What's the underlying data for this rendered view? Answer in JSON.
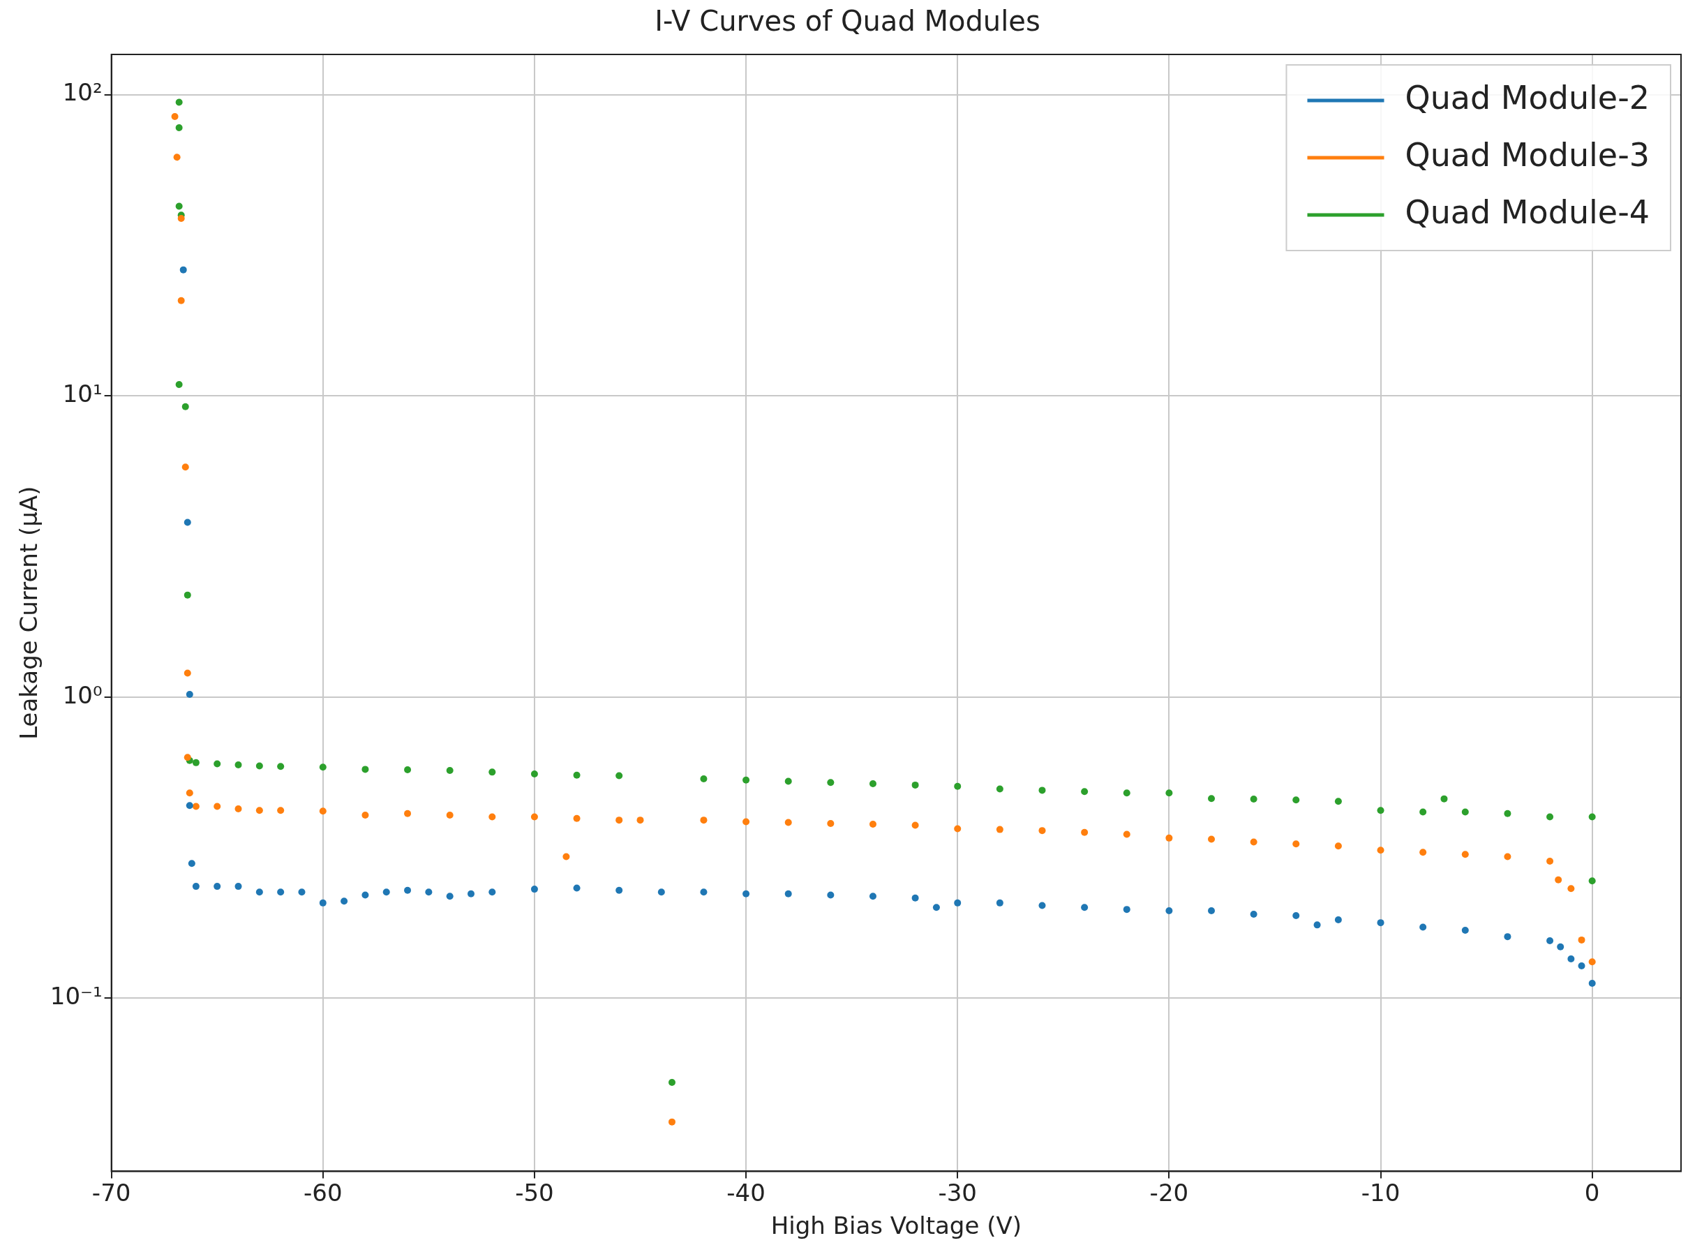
{
  "chart_data": {
    "type": "scatter",
    "title": "I-V Curves of Quad Modules",
    "xlabel": "High Bias Voltage (V)",
    "ylabel": "Leakage Current (μA)",
    "xlim": [
      -70,
      4.2
    ],
    "xticks": [
      -70,
      -60,
      -50,
      -40,
      -30,
      -20,
      -10,
      0
    ],
    "ylim": [
      0.0266,
      136
    ],
    "yticks": [
      {
        "value": 0.1,
        "label": "10⁻¹"
      },
      {
        "value": 1,
        "label": "10⁰"
      },
      {
        "value": 10,
        "label": "10¹"
      },
      {
        "value": 100,
        "label": "10²"
      }
    ],
    "log": "y",
    "grid": true,
    "legend": "top right",
    "marker": "circle",
    "series": [
      {
        "name": "Quad Module-2",
        "color": "#1f77b4",
        "x": [
          -66.6,
          -66.4,
          -66.3,
          -66.3,
          -66.2,
          -66,
          -65,
          -64,
          -63,
          -62,
          -61,
          -60,
          -59,
          -58,
          -57,
          -56,
          -55,
          -54,
          -53,
          -52,
          -50,
          -48,
          -46,
          -44,
          -42,
          -40,
          -38,
          -36,
          -34,
          -32,
          -31,
          -30,
          -28,
          -26,
          -24,
          -22,
          -20,
          -18,
          -16,
          -14,
          -13,
          -12,
          -10,
          -8,
          -6,
          -4,
          -2,
          -1.5,
          -1,
          -0.5,
          0
        ],
        "values": [
          26.2,
          3.8,
          1.02,
          0.436,
          0.28,
          0.235,
          0.235,
          0.235,
          0.225,
          0.225,
          0.225,
          0.207,
          0.21,
          0.22,
          0.225,
          0.228,
          0.225,
          0.218,
          0.222,
          0.225,
          0.23,
          0.232,
          0.228,
          0.225,
          0.225,
          0.222,
          0.222,
          0.22,
          0.218,
          0.215,
          0.2,
          0.207,
          0.207,
          0.203,
          0.2,
          0.197,
          0.195,
          0.195,
          0.19,
          0.188,
          0.175,
          0.182,
          0.178,
          0.172,
          0.168,
          0.16,
          0.155,
          0.148,
          0.135,
          0.128,
          0.112
        ]
      },
      {
        "name": "Quad Module-3",
        "color": "#ff7f0e",
        "x": [
          -67,
          -66.9,
          -66.7,
          -66.7,
          -66.5,
          -66.4,
          -66.4,
          -66.3,
          -66,
          -65,
          -64,
          -63,
          -62,
          -60,
          -58,
          -56,
          -54,
          -52,
          -50,
          -48.5,
          -48,
          -46,
          -45,
          -43.5,
          -42,
          -40,
          -38,
          -36,
          -34,
          -32,
          -30,
          -28,
          -26,
          -24,
          -22,
          -20,
          -18,
          -16,
          -14,
          -12,
          -10,
          -8,
          -6,
          -4,
          -2,
          -1.6,
          -1,
          -0.5,
          0
        ],
        "values": [
          84.6,
          62,
          38.8,
          20.7,
          5.8,
          1.2,
          0.63,
          0.48,
          0.433,
          0.433,
          0.425,
          0.42,
          0.42,
          0.418,
          0.405,
          0.41,
          0.405,
          0.4,
          0.4,
          0.295,
          0.395,
          0.39,
          0.39,
          0.0388,
          0.39,
          0.385,
          0.383,
          0.38,
          0.378,
          0.375,
          0.365,
          0.363,
          0.36,
          0.355,
          0.35,
          0.34,
          0.337,
          0.33,
          0.325,
          0.32,
          0.31,
          0.305,
          0.3,
          0.295,
          0.285,
          0.247,
          0.231,
          0.156,
          0.132
        ]
      },
      {
        "name": "Quad Module-4",
        "color": "#2ca02c",
        "x": [
          -66.8,
          -66.8,
          -66.8,
          -66.7,
          -66.8,
          -66.5,
          -66.4,
          -66.3,
          -66,
          -65,
          -64,
          -63,
          -62,
          -60,
          -58,
          -56,
          -54,
          -52,
          -50,
          -48,
          -46,
          -43.5,
          -42,
          -40,
          -38,
          -36,
          -34,
          -32,
          -30,
          -28,
          -26,
          -24,
          -22,
          -20,
          -18,
          -16,
          -14,
          -12,
          -10,
          -8,
          -7,
          -6,
          -4,
          -2,
          0,
          0
        ],
        "values": [
          94.4,
          77.7,
          42.6,
          39.8,
          10.9,
          9.2,
          2.18,
          0.615,
          0.605,
          0.6,
          0.595,
          0.59,
          0.588,
          0.585,
          0.575,
          0.573,
          0.57,
          0.563,
          0.555,
          0.55,
          0.548,
          0.0525,
          0.535,
          0.53,
          0.525,
          0.52,
          0.515,
          0.51,
          0.505,
          0.495,
          0.49,
          0.485,
          0.48,
          0.48,
          0.46,
          0.458,
          0.455,
          0.45,
          0.42,
          0.415,
          0.459,
          0.415,
          0.41,
          0.4,
          0.4,
          0.245
        ]
      }
    ]
  }
}
